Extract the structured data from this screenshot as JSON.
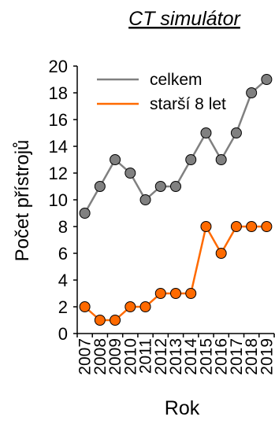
{
  "chart_data": {
    "type": "line",
    "title": "CT simulátor",
    "xlabel": "Rok",
    "ylabel": "Počet přístrojů",
    "categories": [
      "2007",
      "2008",
      "2009",
      "2010",
      "2011",
      "2012",
      "2013",
      "2014",
      "2015",
      "2016",
      "2017",
      "2018",
      "2019"
    ],
    "ylim": [
      0,
      20
    ],
    "yticks": [
      0,
      2,
      4,
      6,
      8,
      10,
      12,
      14,
      16,
      18,
      20
    ],
    "grid": false,
    "legend_position": "top-left",
    "series": [
      {
        "name": "celkem",
        "color": "#808080",
        "marker_fill": "#808080",
        "values": [
          9,
          11,
          13,
          12,
          10,
          11,
          11,
          13,
          15,
          13,
          15,
          18,
          19
        ]
      },
      {
        "name": "starší 8 let",
        "color": "#FF6A00",
        "marker_fill": "#FF6A00",
        "values": [
          2,
          1,
          1,
          2,
          2,
          3,
          3,
          3,
          8,
          6,
          8,
          8,
          8
        ]
      }
    ]
  }
}
